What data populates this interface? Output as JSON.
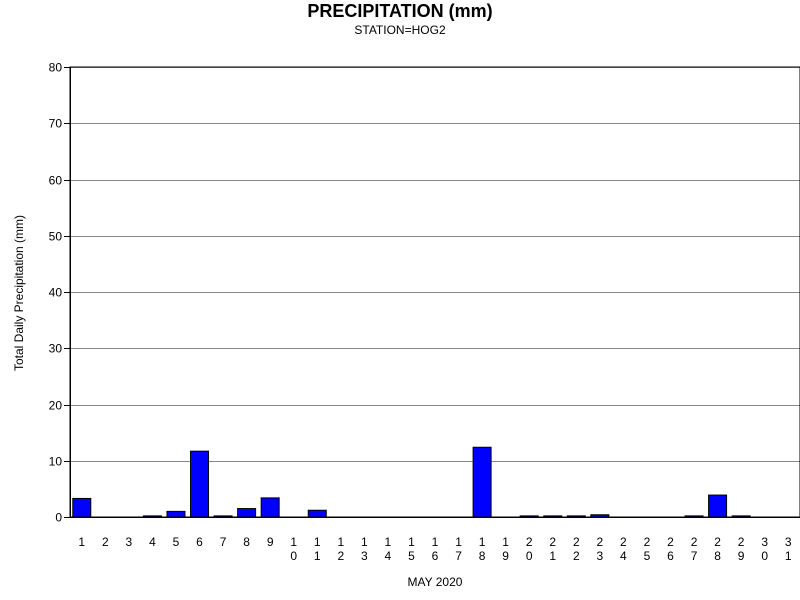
{
  "chart_data": {
    "type": "bar",
    "title": "PRECIPITATION (mm)",
    "subtitle": "STATION=HOG2",
    "xlabel": "MAY 2020",
    "ylabel": "Total Daily Precipitation (mm)",
    "ylim": [
      0,
      80
    ],
    "yticks": [
      0,
      10,
      20,
      30,
      40,
      50,
      60,
      70,
      80
    ],
    "grid": true,
    "bar_color": "#0000ff",
    "categories": [
      "1",
      "2",
      "3",
      "4",
      "5",
      "6",
      "7",
      "8",
      "9",
      "10",
      "11",
      "12",
      "13",
      "14",
      "15",
      "16",
      "17",
      "18",
      "19",
      "20",
      "21",
      "22",
      "23",
      "24",
      "25",
      "26",
      "27",
      "28",
      "29",
      "30",
      "31"
    ],
    "values": [
      3.3,
      0,
      0,
      0.2,
      1.0,
      11.7,
      0.2,
      1.5,
      3.4,
      0,
      1.2,
      0,
      0,
      0,
      0,
      0,
      0,
      12.4,
      0,
      0.2,
      0.2,
      0.2,
      0.4,
      0,
      0,
      0,
      0.2,
      3.9,
      0.2,
      0,
      0
    ]
  }
}
